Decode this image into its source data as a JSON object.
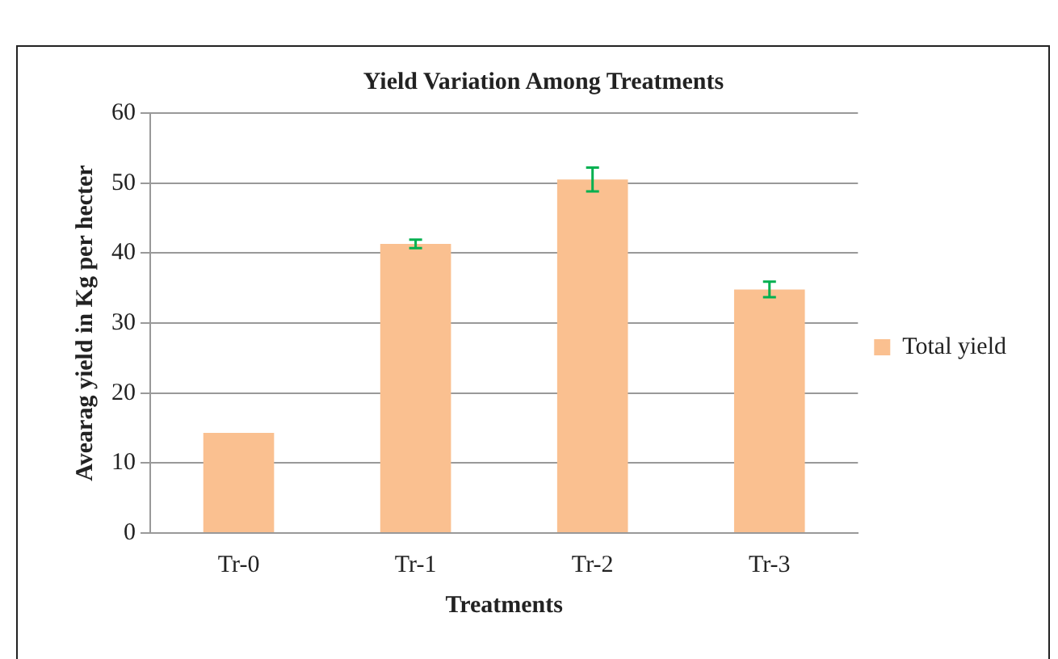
{
  "chart_data": {
    "type": "bar",
    "title": "Yield Variation Among Treatments",
    "xlabel": "Treatments",
    "ylabel": "Avearag yield in Kg per hecter",
    "categories": [
      "Tr-0",
      "Tr-1",
      "Tr-2",
      "Tr-3"
    ],
    "series": [
      {
        "name": "Total yield",
        "color": "#fac090",
        "values": [
          14.3,
          41.3,
          50.5,
          34.8
        ],
        "errors": [
          null,
          0.6,
          1.7,
          1.1
        ]
      }
    ],
    "ylim": [
      0,
      60
    ],
    "yticks": [
      0,
      10,
      20,
      30,
      40,
      50,
      60
    ],
    "grid": "y",
    "legend": "right"
  }
}
